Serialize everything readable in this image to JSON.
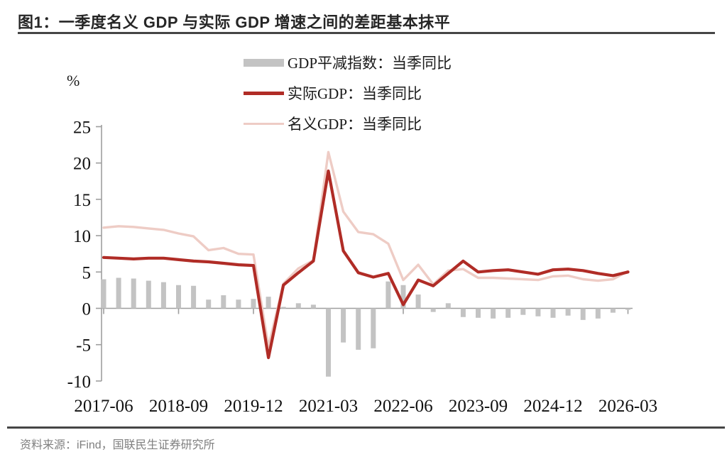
{
  "figure": {
    "title": "图1：一季度名义 GDP 与实际 GDP 增速之间的差距基本抹平",
    "source": "资料来源：iFind，国联民生证券研究所",
    "unit_label": "%"
  },
  "legend": {
    "items": [
      {
        "label": "GDP平减指数：当季同比",
        "swatch": "bar",
        "color": "#c3c3c3"
      },
      {
        "label": "实际GDP：当季同比",
        "swatch": "line",
        "color": "#b02c26"
      },
      {
        "label": "名义GDP：当季同比",
        "swatch": "line",
        "color": "#eeccc5"
      }
    ]
  },
  "chart_data": {
    "type": "bar+line",
    "title": "一季度名义 GDP 与实际 GDP 增速之间的差距基本抹平",
    "xlabel": "",
    "ylabel": "%",
    "ylim": [
      -10,
      25
    ],
    "y_ticks": [
      25,
      20,
      15,
      10,
      5,
      0,
      -5,
      -10
    ],
    "x_tick_labels": [
      "2017-06",
      "2018-09",
      "2019-12",
      "2021-03",
      "2022-06",
      "2023-09",
      "2024-12",
      "2026-03"
    ],
    "x_tick_indices": [
      0,
      5,
      10,
      15,
      20,
      25,
      30,
      35
    ],
    "grid": false,
    "legend_position": "top-center",
    "axis_color": "#9e9e9e",
    "categories": [
      "2017-06",
      "2017-09",
      "2017-12",
      "2018-03",
      "2018-06",
      "2018-09",
      "2018-12",
      "2019-03",
      "2019-06",
      "2019-09",
      "2019-12",
      "2020-03",
      "2020-06",
      "2020-09",
      "2020-12",
      "2021-03",
      "2021-06",
      "2021-09",
      "2021-12",
      "2022-03",
      "2022-06",
      "2022-09",
      "2022-12",
      "2023-03",
      "2023-06",
      "2023-09",
      "2023-12",
      "2024-03",
      "2024-06",
      "2024-09",
      "2024-12",
      "2025-03",
      "2025-06",
      "2025-09",
      "2025-12",
      "2026-03"
    ],
    "series": [
      {
        "name": "GDP平减指数：当季同比",
        "type": "bar",
        "color": "#c3c3c3",
        "values": [
          4.0,
          4.2,
          4.1,
          3.8,
          3.6,
          3.2,
          3.1,
          1.2,
          1.8,
          1.2,
          1.3,
          1.6,
          0.2,
          0.7,
          0.5,
          -9.4,
          -4.7,
          -5.7,
          -5.5,
          3.7,
          3.2,
          1.9,
          -0.5,
          0.7,
          -1.2,
          -1.3,
          -1.4,
          -1.3,
          -0.9,
          -1.1,
          -1.3,
          -1.0,
          -1.6,
          -1.4,
          -0.6,
          -0.2
        ]
      },
      {
        "name": "实际GDP：当季同比",
        "type": "line",
        "color": "#b02c26",
        "values": [
          7.0,
          6.9,
          6.8,
          6.9,
          6.9,
          6.7,
          6.5,
          6.4,
          6.2,
          6.0,
          5.9,
          -6.8,
          3.2,
          4.9,
          6.5,
          18.9,
          7.9,
          4.9,
          4.3,
          4.8,
          0.5,
          3.9,
          3.1,
          4.8,
          6.5,
          5.0,
          5.2,
          5.3,
          5.0,
          4.7,
          5.3,
          5.4,
          5.2,
          4.8,
          4.5,
          5.0
        ]
      },
      {
        "name": "名义GDP：当季同比",
        "type": "line",
        "color": "#eeccc5",
        "values": [
          11.1,
          11.3,
          11.2,
          11.0,
          10.8,
          10.3,
          9.9,
          8.0,
          8.3,
          7.5,
          7.4,
          -5.3,
          3.4,
          5.5,
          6.6,
          21.5,
          13.3,
          10.5,
          10.2,
          8.9,
          3.9,
          6.0,
          3.3,
          5.2,
          5.4,
          4.2,
          4.2,
          4.1,
          4.0,
          3.9,
          4.4,
          4.5,
          4.0,
          3.8,
          4.0,
          5.1
        ]
      }
    ]
  }
}
